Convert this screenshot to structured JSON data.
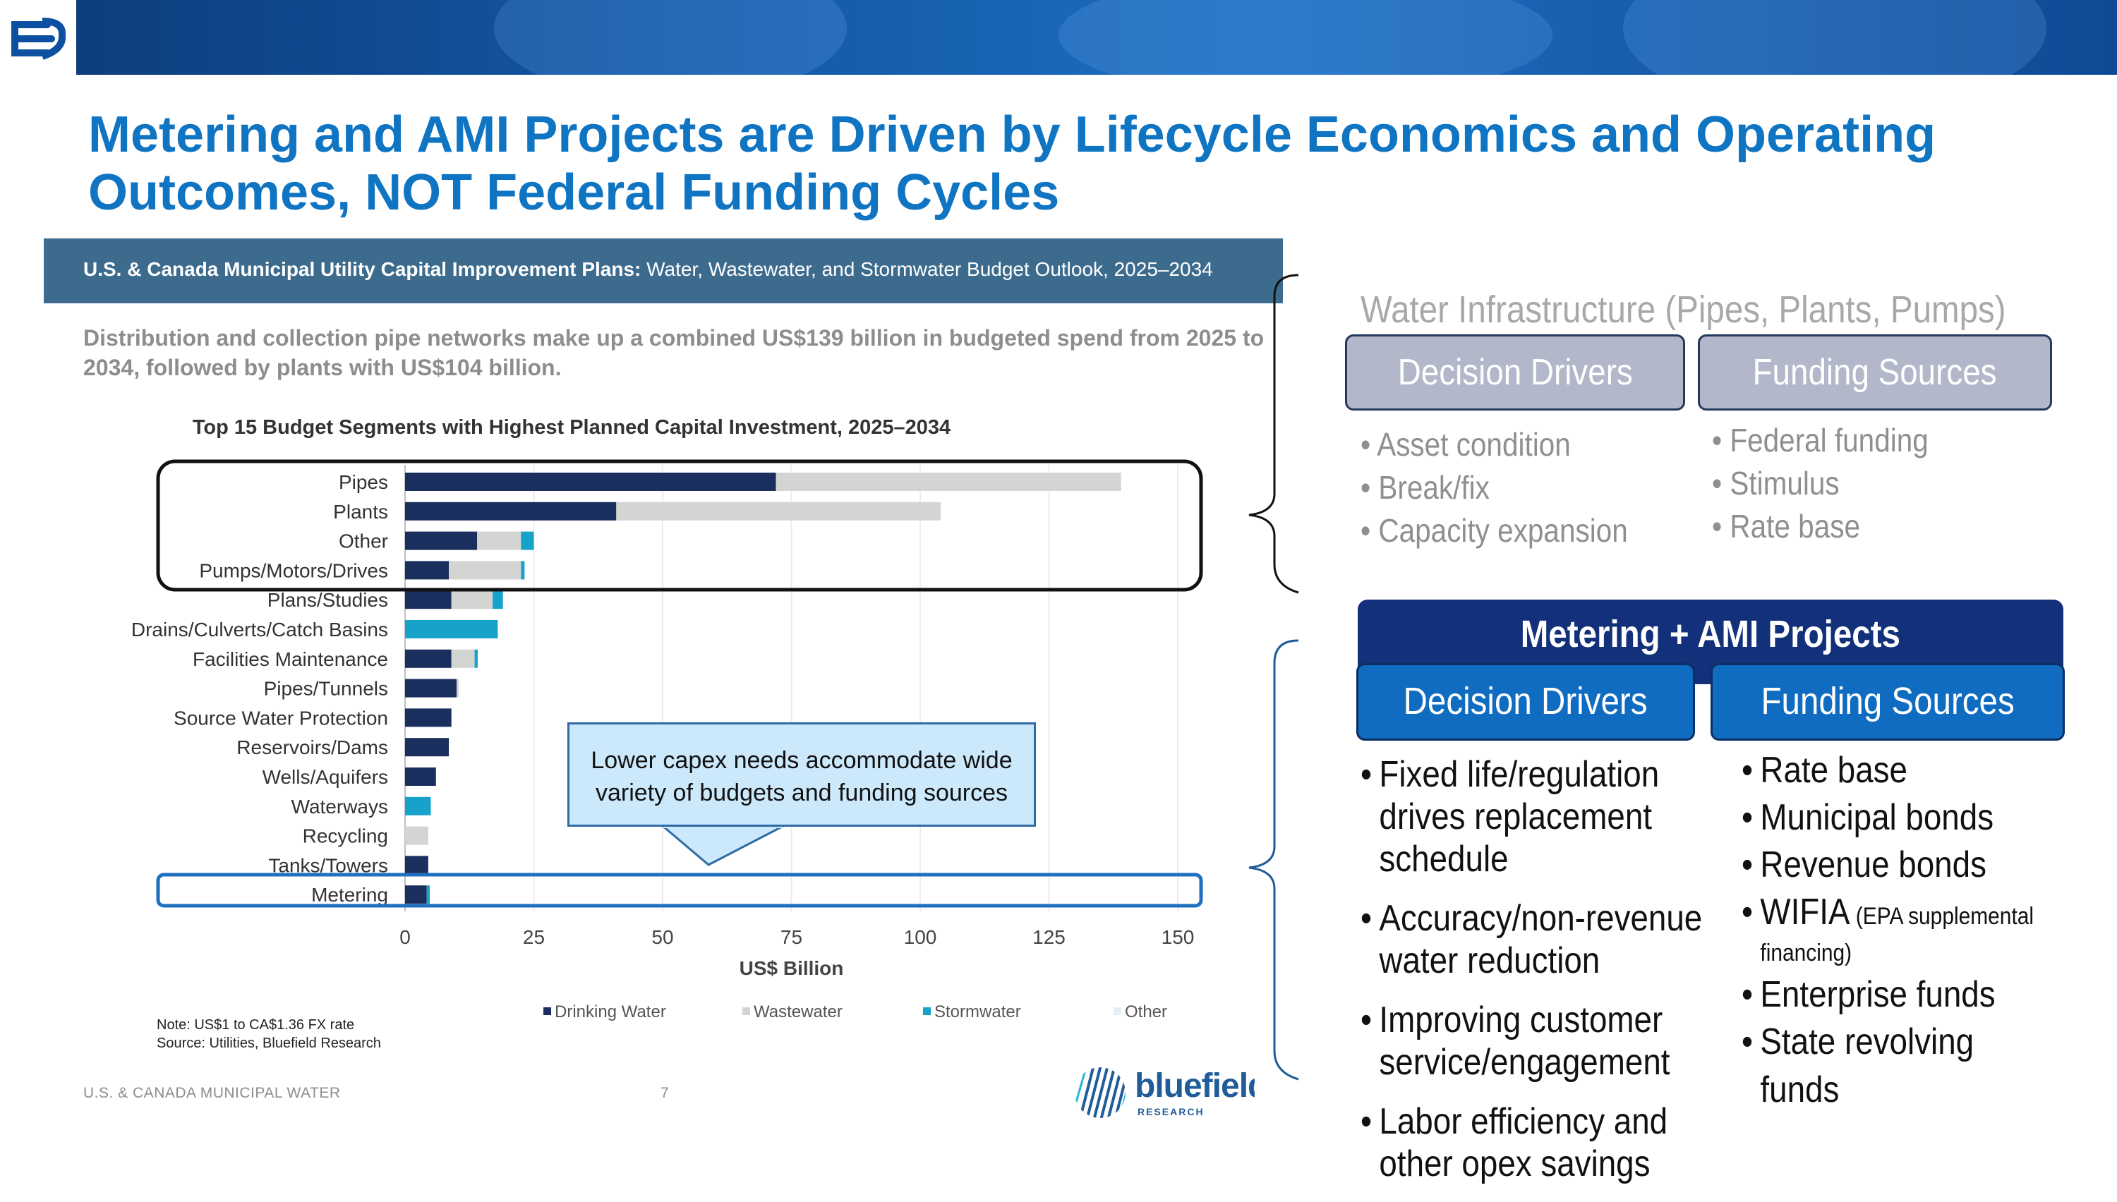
{
  "slide": {
    "title": "Metering and AMI Projects are Driven by Lifecycle Economics and Operating Outcomes, NOT Federal Funding Cycles"
  },
  "report": {
    "header_bold": "U.S. & Canada Municipal Utility Capital Improvement Plans:",
    "header_rest": " Water, Wastewater, and Stormwater Budget Outlook, 2025–2034",
    "summary": "Distribution and collection pipe networks make up a combined US$139 billion in budgeted spend from 2025 to 2034, followed by plants with US$104 billion.",
    "note_line1": "Note: US$1 to CA$1.36 FX rate",
    "note_line2": "Source: Utilities, Bluefield Research",
    "footer_left": "U.S. & CANADA MUNICIPAL WATER",
    "footer_page": "7",
    "logo_text": "bluefield",
    "logo_sub": "RESEARCH"
  },
  "callout": {
    "line1": "Lower capex needs accommodate wide",
    "line2": "variety of budgets and funding sources"
  },
  "chart_data": {
    "type": "bar",
    "orientation": "horizontal",
    "stacked": true,
    "title": "Top 15 Budget Segments with Highest Planned Capital Investment, 2025–2034",
    "xlabel": "US$ Billion",
    "ylabel": "",
    "xlim": [
      0,
      150
    ],
    "xticks": [
      0,
      25,
      50,
      75,
      100,
      125,
      150
    ],
    "grid": "vertical",
    "legend_position": "bottom",
    "categories": [
      "Pipes",
      "Plants",
      "Other",
      "Pumps/Motors/Drives",
      "Plans/Studies",
      "Drains/Culverts/Catch Basins",
      "Facilities Maintenance",
      "Pipes/Tunnels",
      "Source Water Protection",
      "Reservoirs/Dams",
      "Wells/Aquifers",
      "Waterways",
      "Recycling",
      "Tanks/Towers",
      "Metering"
    ],
    "series": [
      {
        "name": "Drinking Water",
        "color": "#1b2f5e",
        "values": [
          72,
          41,
          14,
          8.5,
          9,
          0,
          9,
          10,
          9,
          8.5,
          6,
          0,
          0,
          4.5,
          4.2
        ]
      },
      {
        "name": "Wastewater",
        "color": "#d3d5d3",
        "values": [
          67,
          63,
          8.5,
          14,
          8,
          0,
          4.5,
          0.4,
          0,
          0,
          0,
          0,
          4.5,
          0,
          0
        ]
      },
      {
        "name": "Stormwater",
        "color": "#17a3c9",
        "values": [
          0,
          0,
          2.5,
          0.7,
          2,
          18,
          0.6,
          0,
          0,
          0,
          0,
          5,
          0,
          0,
          0.6
        ]
      },
      {
        "name": "Other",
        "color": "#dff0f8",
        "values": [
          0,
          0,
          0,
          0,
          0,
          0,
          0,
          0,
          0,
          0,
          0,
          0,
          0,
          0,
          0
        ]
      }
    ]
  },
  "right": {
    "water_title": "Water Infrastructure (Pipes, Plants, Pumps)",
    "grey_drivers_label": "Decision Drivers",
    "grey_funding_label": "Funding Sources",
    "grey_drivers": [
      "Asset condition",
      "Break/fix",
      "Capacity expansion"
    ],
    "grey_funding": [
      "Federal funding",
      "Stimulus",
      "Rate base"
    ],
    "ami_title": "Metering + AMI Projects",
    "blue_drivers_label": "Decision Drivers",
    "blue_funding_label": "Funding Sources",
    "blue_drivers": [
      {
        "l1": "Fixed life/regulation",
        "l2": "drives replacement",
        "l3": "schedule"
      },
      {
        "l1": "Accuracy/non-revenue",
        "l2": "water reduction"
      },
      {
        "l1": "Improving customer",
        "l2": "service/engagement"
      },
      {
        "l1": "Labor efficiency and",
        "l2": "other opex savings"
      }
    ],
    "blue_funding": {
      "item1": "Rate base",
      "item2": "Municipal bonds",
      "item3": "Revenue bonds",
      "item4_main": "WIFIA",
      "item4_note_a": " (EPA supplemental",
      "item4_note_b": "financing)",
      "item5": "Enterprise funds",
      "item6_l1": "State revolving",
      "item6_l2": "funds"
    }
  }
}
